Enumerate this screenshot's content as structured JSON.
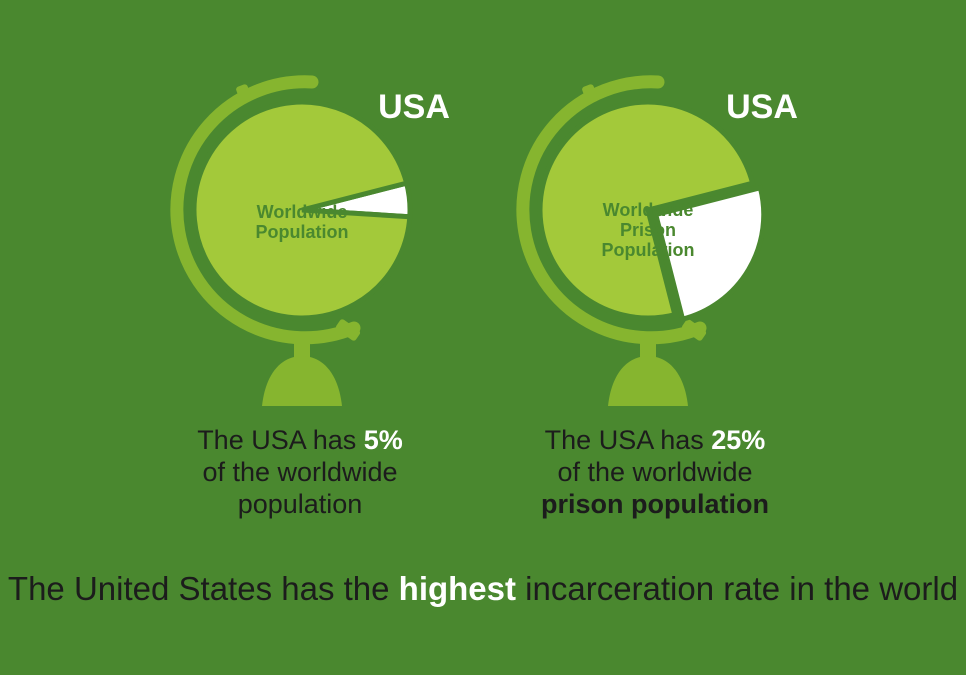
{
  "colors": {
    "background": "#4a882f",
    "globe_fill": "#a3c93a",
    "stand": "#86b52f",
    "usa_slice": "#ffffff",
    "inner_label": "#4a882f",
    "text_dark": "#1c1c1c",
    "highlight_text": "#ffffff"
  },
  "chart_data": [
    {
      "type": "pie",
      "center_label": [
        "Worldwide",
        "Population"
      ],
      "slices": [
        {
          "label": "USA",
          "value": 5
        },
        {
          "label": "",
          "value": 95
        }
      ],
      "caption": {
        "line1_pre": "The USA has ",
        "line1_num": "5%",
        "line2": "of the worldwide",
        "line3": "population"
      }
    },
    {
      "type": "pie",
      "center_label": [
        "Worldwide",
        "Prison",
        "Population"
      ],
      "slices": [
        {
          "label": "USA",
          "value": 25
        },
        {
          "label": "",
          "value": 75
        }
      ],
      "caption": {
        "line1_pre": "The USA has ",
        "line1_num": "25%",
        "line2": "of the worldwide",
        "line3": "prison population"
      }
    }
  ],
  "footer": {
    "pre": "The United States has the ",
    "highlight": "highest",
    "post": " incarceration rate in the world"
  }
}
